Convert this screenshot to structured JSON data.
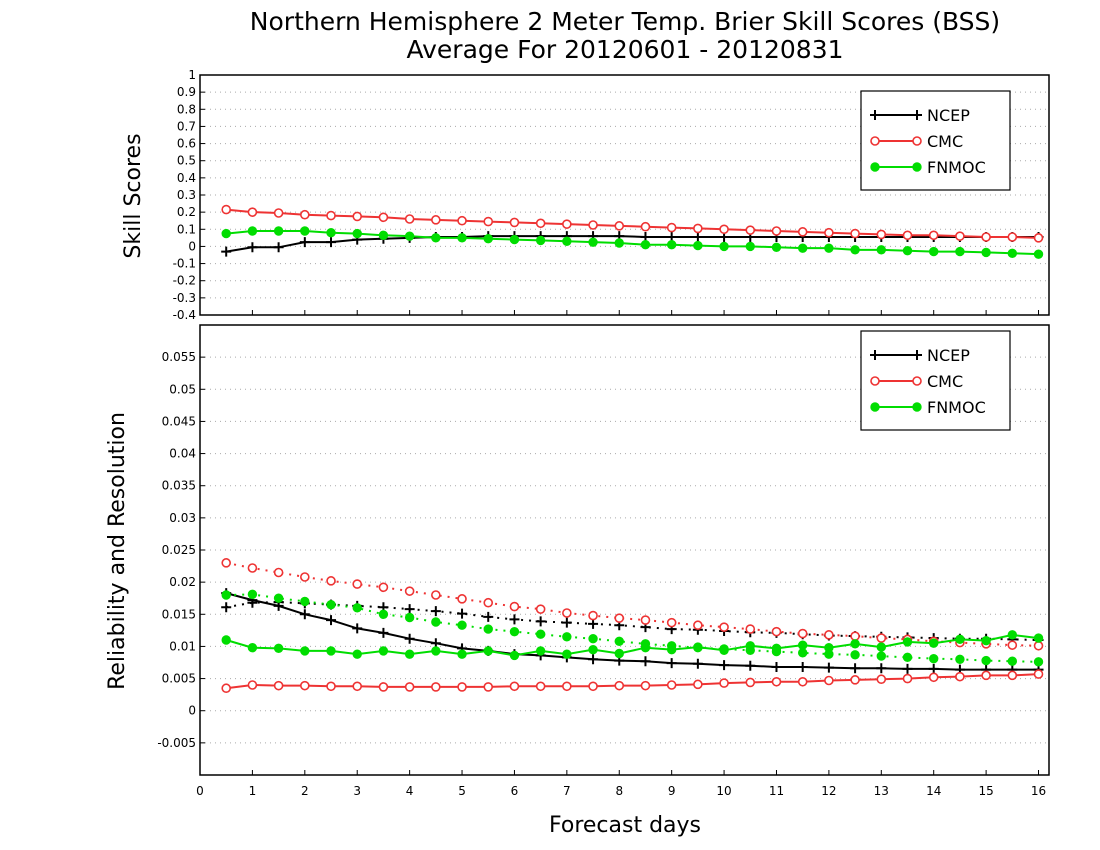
{
  "chart_data": [
    {
      "type": "line",
      "title": "Northern Hemisphere 2 Meter Temp. Brier Skill Scores (BSS)",
      "subtitle": "Average For 20120601 - 20120831",
      "xlabel": "",
      "ylabel": "Skill Scores",
      "xlim": [
        0,
        16.2
      ],
      "ylim": [
        -0.4,
        1
      ],
      "yticks": [
        "-0.4",
        "-0.3",
        "-0.2",
        "-0.1",
        "0",
        "0.1",
        "0.2",
        "0.3",
        "0.4",
        "0.5",
        "0.6",
        "0.7",
        "0.8",
        "0.9",
        "1"
      ],
      "grid": true,
      "legend": {
        "position": "top-right",
        "entries": [
          "NCEP",
          "CMC",
          "FNMOC"
        ]
      },
      "x": [
        0.5,
        1,
        1.5,
        2,
        2.5,
        3,
        3.5,
        4,
        4.5,
        5,
        5.5,
        6,
        6.5,
        7,
        7.5,
        8,
        8.5,
        9,
        9.5,
        10,
        10.5,
        11,
        11.5,
        12,
        12.5,
        13,
        13.5,
        14,
        14.5,
        15,
        15.5,
        16
      ],
      "series": [
        {
          "name": "NCEP",
          "color": "#000000",
          "marker": "plus",
          "style": "solid",
          "values": [
            -0.03,
            -0.005,
            -0.005,
            0.025,
            0.025,
            0.04,
            0.045,
            0.05,
            0.055,
            0.055,
            0.06,
            0.06,
            0.06,
            0.06,
            0.06,
            0.06,
            0.055,
            0.055,
            0.055,
            0.055,
            0.055,
            0.055,
            0.055,
            0.055,
            0.055,
            0.055,
            0.055,
            0.055,
            0.055,
            0.055,
            0.055,
            0.055
          ]
        },
        {
          "name": "CMC",
          "color": "#ee3333",
          "marker": "open-circle",
          "style": "solid",
          "values": [
            0.215,
            0.2,
            0.195,
            0.185,
            0.18,
            0.175,
            0.17,
            0.16,
            0.155,
            0.15,
            0.145,
            0.14,
            0.135,
            0.13,
            0.125,
            0.12,
            0.115,
            0.11,
            0.105,
            0.1,
            0.095,
            0.09,
            0.085,
            0.08,
            0.075,
            0.07,
            0.065,
            0.065,
            0.06,
            0.055,
            0.055,
            0.05
          ]
        },
        {
          "name": "FNMOC",
          "color": "#00dd00",
          "marker": "filled-circle",
          "style": "solid",
          "values": [
            0.075,
            0.09,
            0.09,
            0.09,
            0.08,
            0.075,
            0.065,
            0.06,
            0.05,
            0.05,
            0.045,
            0.04,
            0.035,
            0.03,
            0.025,
            0.02,
            0.01,
            0.01,
            0.005,
            0.0,
            0.0,
            -0.005,
            -0.01,
            -0.01,
            -0.02,
            -0.02,
            -0.025,
            -0.03,
            -0.03,
            -0.035,
            -0.04,
            -0.045
          ]
        }
      ]
    },
    {
      "type": "line",
      "title": "",
      "xlabel": "Forecast days",
      "ylabel": "Reliability and Resolution",
      "xlim": [
        0,
        16.2
      ],
      "ylim": [
        -0.01,
        0.06
      ],
      "yticks": [
        "-0.005",
        "0",
        "0.005",
        "0.01",
        "0.015",
        "0.02",
        "0.025",
        "0.03",
        "0.035",
        "0.04",
        "0.045",
        "0.05",
        "0.055"
      ],
      "xticks": [
        "0",
        "1",
        "2",
        "3",
        "4",
        "5",
        "6",
        "7",
        "8",
        "9",
        "10",
        "11",
        "12",
        "13",
        "14",
        "15",
        "16"
      ],
      "grid": true,
      "legend": {
        "position": "top-right",
        "entries": [
          "NCEP",
          "CMC",
          "FNMOC"
        ]
      },
      "x": [
        0.5,
        1,
        1.5,
        2,
        2.5,
        3,
        3.5,
        4,
        4.5,
        5,
        5.5,
        6,
        6.5,
        7,
        7.5,
        8,
        8.5,
        9,
        9.5,
        10,
        10.5,
        11,
        11.5,
        12,
        12.5,
        13,
        13.5,
        14,
        14.5,
        15,
        15.5,
        16
      ],
      "series": [
        {
          "name": "NCEP",
          "color": "#000000",
          "marker": "plus",
          "style": "solid",
          "values": [
            0.0183,
            0.0172,
            0.0163,
            0.015,
            0.0141,
            0.0128,
            0.0121,
            0.0112,
            0.0105,
            0.0097,
            0.0093,
            0.0088,
            0.0086,
            0.0083,
            0.008,
            0.0078,
            0.0077,
            0.0074,
            0.0073,
            0.0071,
            0.007,
            0.0068,
            0.0068,
            0.0067,
            0.0066,
            0.0066,
            0.0065,
            0.0065,
            0.0064,
            0.0064,
            0.0064,
            0.0064
          ]
        },
        {
          "name": "NCEP",
          "color": "#000000",
          "marker": "plus",
          "style": "dotted",
          "values": [
            0.0161,
            0.0168,
            0.0169,
            0.0167,
            0.0165,
            0.0163,
            0.0161,
            0.0158,
            0.0155,
            0.0151,
            0.0146,
            0.0142,
            0.0139,
            0.0137,
            0.0135,
            0.0133,
            0.013,
            0.0127,
            0.0126,
            0.0124,
            0.0122,
            0.0121,
            0.0119,
            0.0117,
            0.0116,
            0.0115,
            0.0114,
            0.0113,
            0.0112,
            0.0112,
            0.0111,
            0.011
          ]
        },
        {
          "name": "CMC",
          "color": "#ee3333",
          "marker": "open-circle",
          "style": "solid",
          "values": [
            0.0035,
            0.004,
            0.0039,
            0.0039,
            0.0038,
            0.0038,
            0.0037,
            0.0037,
            0.0037,
            0.0037,
            0.0037,
            0.0038,
            0.0038,
            0.0038,
            0.0038,
            0.0039,
            0.0039,
            0.004,
            0.0041,
            0.0043,
            0.0044,
            0.0045,
            0.0045,
            0.0047,
            0.0048,
            0.0049,
            0.005,
            0.0052,
            0.0053,
            0.0055,
            0.0055,
            0.0057
          ]
        },
        {
          "name": "CMC",
          "color": "#ee3333",
          "marker": "open-circle",
          "style": "dotted",
          "values": [
            0.023,
            0.0222,
            0.0215,
            0.0208,
            0.0202,
            0.0197,
            0.0192,
            0.0186,
            0.018,
            0.0174,
            0.0168,
            0.0162,
            0.0158,
            0.0152,
            0.0148,
            0.0144,
            0.0141,
            0.0137,
            0.0133,
            0.013,
            0.0127,
            0.0123,
            0.012,
            0.0118,
            0.0116,
            0.0113,
            0.0111,
            0.0108,
            0.0106,
            0.0104,
            0.0102,
            0.0101
          ]
        },
        {
          "name": "FNMOC",
          "color": "#00dd00",
          "marker": "filled-circle",
          "style": "solid",
          "values": [
            0.011,
            0.0098,
            0.0097,
            0.0093,
            0.0093,
            0.0088,
            0.0093,
            0.0088,
            0.0093,
            0.0088,
            0.0093,
            0.0086,
            0.0093,
            0.0088,
            0.0095,
            0.0089,
            0.0098,
            0.0095,
            0.0099,
            0.0094,
            0.0101,
            0.0097,
            0.0102,
            0.0098,
            0.0104,
            0.0099,
            0.0107,
            0.0105,
            0.0111,
            0.0109,
            0.0118,
            0.0113
          ]
        },
        {
          "name": "FNMOC",
          "color": "#00dd00",
          "marker": "filled-circle",
          "style": "dotted",
          "values": [
            0.018,
            0.0181,
            0.0175,
            0.017,
            0.0165,
            0.016,
            0.015,
            0.0145,
            0.0138,
            0.0133,
            0.0127,
            0.0123,
            0.0119,
            0.0115,
            0.0112,
            0.0108,
            0.0104,
            0.0101,
            0.0098,
            0.0096,
            0.0094,
            0.0092,
            0.009,
            0.0088,
            0.0087,
            0.0085,
            0.0083,
            0.0081,
            0.008,
            0.0078,
            0.0077,
            0.0076
          ]
        }
      ]
    }
  ]
}
